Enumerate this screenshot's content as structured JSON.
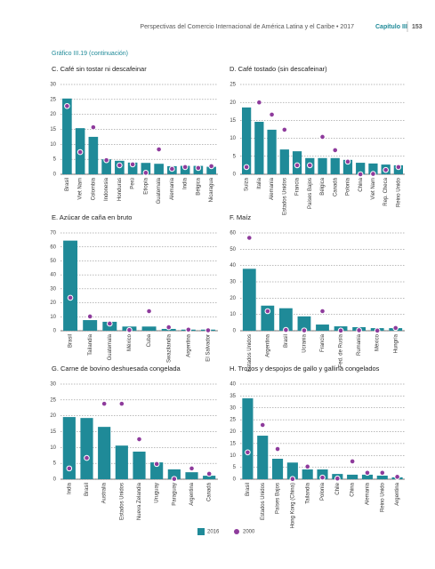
{
  "header": {
    "title": "Perspectivas del Comercio Internacional de América Latina y el Caribe • 2017",
    "chapter": "Capítulo III",
    "page": "153"
  },
  "figure_label": "Gráfico III.19 (continuación)",
  "legend": [
    {
      "name": "2016",
      "color": "#1f8a98",
      "style": "bar"
    },
    {
      "name": "2000",
      "color": "#8e3b9c",
      "style": "dot"
    }
  ],
  "chart_data": [
    {
      "type": "bar",
      "title": "C. Café sin tostar ni descafeinar",
      "categories": [
        "Brasil",
        "Viet Nam",
        "Colombia",
        "Indonesia",
        "Honduras",
        "Perú",
        "Etiopía",
        "Guatemala",
        "Alemania",
        "India",
        "Bélgica",
        "Nicaragua"
      ],
      "series": [
        {
          "values": [
            25.3,
            15.4,
            12.5,
            5,
            4.5,
            3.9,
            3.8,
            3.5,
            2.7,
            2.8,
            2.8,
            2.5
          ]
        },
        {
          "values": [
            22.8,
            7.4,
            15.7,
            4.7,
            3,
            3.3,
            0.5,
            8.3,
            1.8,
            2.4,
            2.1,
            2.7
          ]
        }
      ],
      "ylim": [
        0,
        30
      ],
      "yticks": [
        0,
        5,
        10,
        15,
        20,
        25,
        30
      ],
      "grid": true
    },
    {
      "type": "bar",
      "title": "D. Café tostado (sin descafeinar)",
      "categories": [
        "Suiza",
        "Italia",
        "Alemania",
        "Estados Unidos",
        "Francia",
        "Países Bajos",
        "Bélgica",
        "Canadá",
        "Polonia",
        "China",
        "Viet Nam",
        "Rep. Checa",
        "Reino Unido"
      ],
      "series": [
        {
          "values": [
            18.6,
            14.6,
            12.4,
            6.9,
            6.4,
            4.5,
            4.5,
            4.5,
            4,
            3.2,
            3,
            2.7,
            2.5
          ]
        },
        {
          "values": [
            2,
            20,
            16.6,
            12.4,
            2.5,
            2.5,
            10.4,
            6.7,
            3.5,
            0,
            0.1,
            1.2,
            2
          ]
        }
      ],
      "ylim": [
        0,
        25
      ],
      "yticks": [
        0,
        5,
        10,
        15,
        20,
        25
      ],
      "grid": true
    },
    {
      "type": "bar",
      "title": "E. Azúcar de caña en bruto",
      "categories": [
        "Brasil",
        "Tailandia",
        "Guatemala",
        "México",
        "Cuba",
        "Swazilandia",
        "Argentina",
        "El Salvador"
      ],
      "series": [
        {
          "values": [
            64.5,
            7.6,
            6.4,
            3,
            3,
            1.3,
            0.8,
            0.8
          ]
        },
        {
          "values": [
            23.6,
            10.2,
            5.1,
            0.5,
            14,
            2.5,
            0.8,
            0.3
          ]
        }
      ],
      "ylim": [
        0,
        70
      ],
      "yticks": [
        0,
        10,
        20,
        30,
        40,
        50,
        60,
        70
      ],
      "grid": true
    },
    {
      "type": "bar",
      "title": "F. Maíz",
      "categories": [
        "Estados Unidos",
        "Argentina",
        "Brasil",
        "Ucrania",
        "Francia",
        "Fed. de Rusia",
        "Rumania",
        "México",
        "Hungría"
      ],
      "series": [
        {
          "values": [
            38,
            15.4,
            13.8,
            8.8,
            3.8,
            2.7,
            2.2,
            1.6,
            1.6
          ]
        },
        {
          "values": [
            57,
            12,
            0.5,
            0.2,
            12,
            0.1,
            0.3,
            0.1,
            1.7
          ]
        }
      ],
      "ylim": [
        0,
        60
      ],
      "yticks": [
        0,
        10,
        20,
        30,
        40,
        50,
        60
      ],
      "grid": true
    },
    {
      "type": "bar",
      "title": "G. Carne de bovino deshuesada congelada",
      "categories": [
        "India",
        "Brasil",
        "Australia",
        "Estados Unidos",
        "Nueva Zelandia",
        "Uruguay",
        "Paraguay",
        "Argentina",
        "Canadá"
      ],
      "series": [
        {
          "values": [
            19.6,
            19.3,
            16.5,
            10.6,
            8.7,
            5.3,
            3.1,
            2.2,
            1.1
          ]
        },
        {
          "values": [
            3.4,
            6.7,
            23.8,
            23.8,
            12.6,
            4.8,
            0.1,
            3.4,
            1.7
          ]
        }
      ],
      "ylim": [
        0,
        30
      ],
      "yticks": [
        0,
        5,
        10,
        15,
        20,
        25,
        30
      ],
      "grid": true
    },
    {
      "type": "bar",
      "title": "H. Trozos y despojos de gallo y gallina congelados",
      "categories": [
        "Brasil",
        "Estados Unidos",
        "Países Bajos",
        "Hong Kong (China)",
        "Tailandia",
        "Polonia",
        "Chile",
        "China",
        "Alemania",
        "Reino Unido",
        "Argentina"
      ],
      "series": [
        {
          "values": [
            34,
            18.3,
            8.6,
            7,
            4.1,
            4.1,
            2.2,
            1.9,
            1.9,
            1.5,
            0.8
          ]
        },
        {
          "values": [
            11.3,
            22.8,
            12.7,
            0.1,
            5.3,
            0.7,
            0.3,
            7.5,
            2.7,
            2.7,
            1
          ]
        }
      ],
      "ylim": [
        0,
        40
      ],
      "yticks": [
        0,
        5,
        10,
        15,
        20,
        25,
        30,
        35,
        40
      ],
      "grid": true
    }
  ]
}
